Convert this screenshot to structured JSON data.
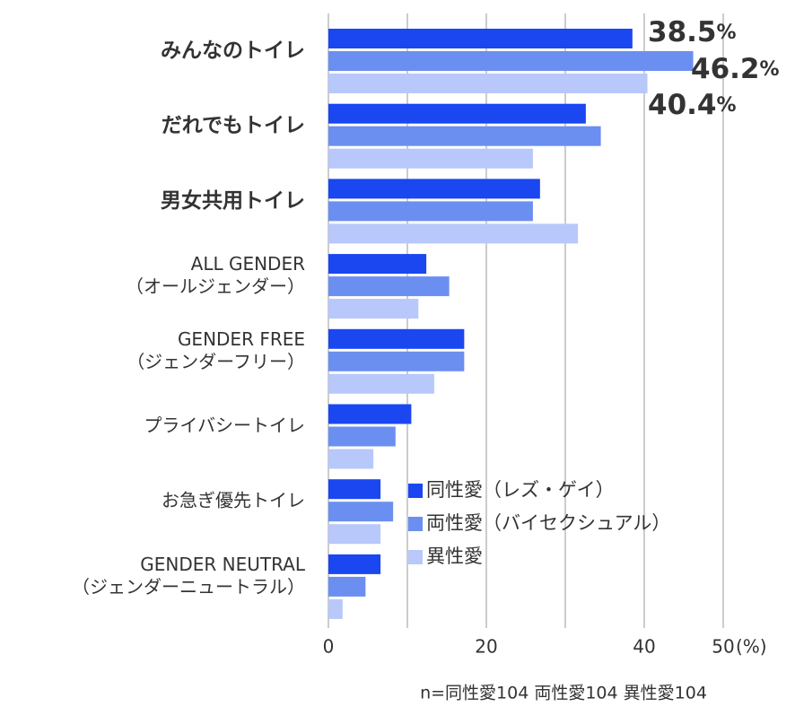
{
  "chart_data": {
    "type": "barh",
    "categories": [
      [
        "みんなのトイレ"
      ],
      [
        "だれでもトイレ"
      ],
      [
        "男女共用トイレ"
      ],
      [
        "ALL GENDER",
        "（オールジェンダー）"
      ],
      [
        "GENDER FREE",
        "（ジェンダーフリー）"
      ],
      [
        "プライバシートイレ"
      ],
      [
        "お急ぎ優先トイレ"
      ],
      [
        "GENDER NEUTRAL",
        "（ジェンダーニュートラル）"
      ]
    ],
    "series": [
      {
        "name": "同性愛（レズ・ゲイ）",
        "color": "#1a47f0",
        "values": [
          38.5,
          32.6,
          26.8,
          12.4,
          17.2,
          10.5,
          6.6,
          6.6
        ],
        "value_labels": [
          "38.5%",
          null,
          null,
          null,
          null,
          null,
          null,
          null
        ]
      },
      {
        "name": "両性愛（バイセクシュアル）",
        "color": "#6b8ff0",
        "values": [
          46.2,
          34.5,
          25.9,
          15.3,
          17.2,
          8.5,
          8.2,
          4.7
        ],
        "value_labels": [
          "46.2%",
          null,
          null,
          null,
          null,
          null,
          null,
          null
        ]
      },
      {
        "name": "異性愛",
        "color": "#b9c8fa",
        "values": [
          40.4,
          25.9,
          31.6,
          11.4,
          13.4,
          5.7,
          6.6,
          1.8
        ],
        "value_labels": [
          "40.4%",
          null,
          null,
          null,
          null,
          null,
          null,
          null
        ]
      }
    ],
    "xlim": [
      0,
      50
    ],
    "xticks": [
      0,
      {
        "value": 10,
        "label": null
      },
      20,
      {
        "value": 30,
        "label": null
      },
      40,
      50
    ],
    "xlabel": "(%)",
    "grid": true,
    "legend": "lower-center",
    "note": "n=同性愛104 両性愛104 異性愛104"
  }
}
